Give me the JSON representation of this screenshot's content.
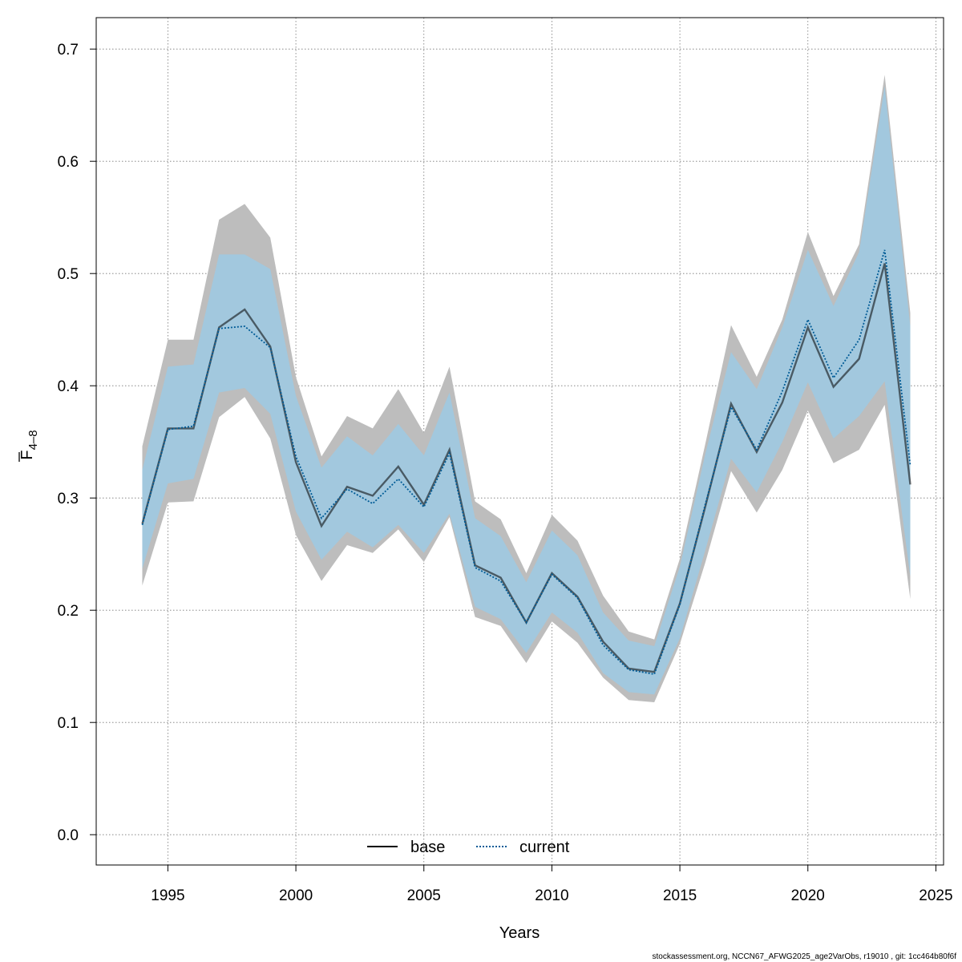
{
  "chart_data": {
    "type": "line",
    "xlabel": "Years",
    "ylabel_main": "F",
    "ylabel_sub": "4–8",
    "xlim": [
      1992.2,
      2025.3
    ],
    "ylim": [
      -0.027,
      0.728
    ],
    "xticks": [
      1995,
      2000,
      2005,
      2010,
      2015,
      2020,
      2025
    ],
    "yticks": [
      0.0,
      0.1,
      0.2,
      0.3,
      0.4,
      0.5,
      0.6,
      0.7
    ],
    "ytick_labels": [
      "0.0",
      "0.1",
      "0.2",
      "0.3",
      "0.4",
      "0.5",
      "0.6",
      "0.7"
    ],
    "grid": true,
    "legend_position": "bottom-center",
    "x": [
      1994,
      1995,
      1996,
      1997,
      1998,
      1999,
      2000,
      2001,
      2002,
      2003,
      2004,
      2005,
      2006,
      2007,
      2008,
      2009,
      2010,
      2011,
      2012,
      2013,
      2014,
      2015,
      2016,
      2017,
      2018,
      2019,
      2020,
      2021,
      2022,
      2023,
      2024
    ],
    "series": [
      {
        "name": "base",
        "line_color": "#000000",
        "line_style": "solid",
        "band_color": "#bdbdbd",
        "values": [
          0.277,
          0.362,
          0.362,
          0.452,
          0.468,
          0.435,
          0.332,
          0.275,
          0.31,
          0.302,
          0.328,
          0.294,
          0.343,
          0.24,
          0.229,
          0.189,
          0.233,
          0.212,
          0.172,
          0.148,
          0.145,
          0.206,
          0.293,
          0.384,
          0.341,
          0.385,
          0.452,
          0.399,
          0.424,
          0.509,
          0.312
        ],
        "upper": [
          0.346,
          0.441,
          0.441,
          0.548,
          0.562,
          0.532,
          0.408,
          0.337,
          0.373,
          0.362,
          0.397,
          0.358,
          0.417,
          0.297,
          0.281,
          0.233,
          0.285,
          0.262,
          0.213,
          0.181,
          0.174,
          0.246,
          0.349,
          0.454,
          0.408,
          0.459,
          0.537,
          0.48,
          0.526,
          0.677,
          0.465
        ],
        "lower": [
          0.222,
          0.296,
          0.297,
          0.372,
          0.39,
          0.353,
          0.267,
          0.226,
          0.258,
          0.251,
          0.272,
          0.243,
          0.283,
          0.194,
          0.186,
          0.153,
          0.19,
          0.171,
          0.14,
          0.12,
          0.118,
          0.17,
          0.243,
          0.324,
          0.287,
          0.325,
          0.378,
          0.331,
          0.343,
          0.383,
          0.21
        ]
      },
      {
        "name": "current",
        "line_color": "#005b96",
        "line_style": "dotted",
        "band_color": "#9fc9e1",
        "values": [
          0.276,
          0.361,
          0.364,
          0.451,
          0.453,
          0.434,
          0.337,
          0.282,
          0.308,
          0.295,
          0.317,
          0.292,
          0.34,
          0.238,
          0.226,
          0.189,
          0.232,
          0.211,
          0.169,
          0.147,
          0.143,
          0.205,
          0.295,
          0.381,
          0.343,
          0.395,
          0.459,
          0.407,
          0.441,
          0.521,
          0.329
        ],
        "upper": [
          0.325,
          0.417,
          0.419,
          0.517,
          0.517,
          0.504,
          0.391,
          0.327,
          0.355,
          0.338,
          0.366,
          0.338,
          0.394,
          0.282,
          0.266,
          0.225,
          0.271,
          0.249,
          0.198,
          0.173,
          0.168,
          0.239,
          0.34,
          0.43,
          0.397,
          0.452,
          0.521,
          0.471,
          0.519,
          0.667,
          0.453
        ],
        "lower": [
          0.237,
          0.313,
          0.317,
          0.394,
          0.398,
          0.375,
          0.288,
          0.245,
          0.27,
          0.256,
          0.276,
          0.251,
          0.286,
          0.203,
          0.192,
          0.162,
          0.198,
          0.18,
          0.144,
          0.127,
          0.125,
          0.175,
          0.254,
          0.335,
          0.305,
          0.35,
          0.403,
          0.353,
          0.373,
          0.404,
          0.23
        ]
      }
    ],
    "legend": [
      "base",
      "current"
    ]
  },
  "footer": "stockassessment.org, NCCN67_AFWG2025_age2VarObs, r19010 , git: 1cc464b80f6f"
}
